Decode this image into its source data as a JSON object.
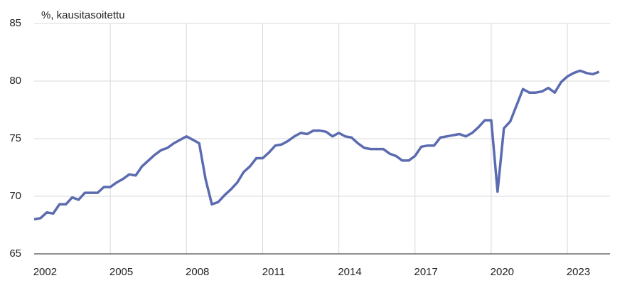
{
  "chart_data": {
    "type": "line",
    "y_label": "%, kausitasoitettu",
    "categories": [
      "2002",
      null,
      null,
      null,
      null,
      null,
      null,
      null,
      null,
      null,
      null,
      null,
      "2005",
      null,
      null,
      null,
      null,
      null,
      null,
      null,
      null,
      null,
      null,
      null,
      "2008",
      null,
      null,
      null,
      null,
      null,
      null,
      null,
      null,
      null,
      null,
      null,
      "2011",
      null,
      null,
      null,
      null,
      null,
      null,
      null,
      null,
      null,
      null,
      null,
      "2014",
      null,
      null,
      null,
      null,
      null,
      null,
      null,
      null,
      null,
      null,
      null,
      "2017",
      null,
      null,
      null,
      null,
      null,
      null,
      null,
      null,
      null,
      null,
      null,
      "2020",
      null,
      null,
      null,
      null,
      null,
      null,
      null,
      null,
      null,
      null,
      null,
      "2023",
      null,
      null,
      null,
      null,
      null
    ],
    "values": [
      68.0,
      68.1,
      68.6,
      68.5,
      69.3,
      69.3,
      69.9,
      69.7,
      70.3,
      70.3,
      70.3,
      70.8,
      70.8,
      71.2,
      71.5,
      71.9,
      71.8,
      72.6,
      73.1,
      73.6,
      74.0,
      74.2,
      74.6,
      74.9,
      75.2,
      74.9,
      74.6,
      71.5,
      69.3,
      69.5,
      70.1,
      70.6,
      71.2,
      72.1,
      72.6,
      73.3,
      73.3,
      73.8,
      74.4,
      74.5,
      74.8,
      75.2,
      75.5,
      75.4,
      75.7,
      75.7,
      75.6,
      75.2,
      75.5,
      75.2,
      75.1,
      74.6,
      74.2,
      74.1,
      74.1,
      74.1,
      73.7,
      73.5,
      73.1,
      73.1,
      73.5,
      74.3,
      74.4,
      74.4,
      75.1,
      75.2,
      75.3,
      75.4,
      75.2,
      75.5,
      76.0,
      76.6,
      76.6,
      70.4,
      75.9,
      76.5,
      77.9,
      79.3,
      79.0,
      79.0,
      79.1,
      79.4,
      79.0,
      79.9,
      80.4,
      80.7,
      80.9,
      80.7,
      80.6,
      80.8
    ],
    "color": "#5b6bb0",
    "ylim": [
      65,
      85
    ],
    "yticks": [
      65,
      70,
      75,
      80,
      85
    ],
    "grid": true
  }
}
